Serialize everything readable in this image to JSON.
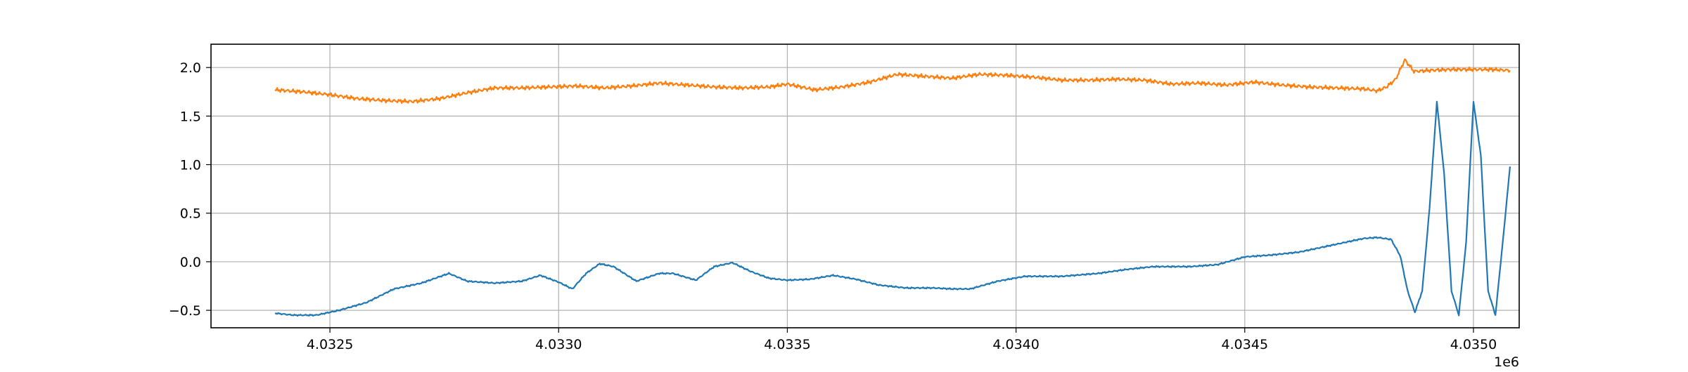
{
  "chart_data": {
    "type": "line",
    "title": "",
    "xlabel": "",
    "ylabel": "",
    "x_offset_label": "1e6",
    "x_scale": 1000000,
    "xlim": [
      4032240,
      4035100
    ],
    "ylim": [
      -0.68,
      2.24
    ],
    "x_ticks": [
      4032500,
      4033000,
      4033500,
      4034000,
      4034500,
      4035000
    ],
    "x_tick_labels": [
      "4.0325",
      "4.0330",
      "4.0335",
      "4.0340",
      "4.0345",
      "4.0350"
    ],
    "y_ticks": [
      -0.5,
      0.0,
      0.5,
      1.0,
      1.5,
      2.0
    ],
    "y_tick_labels": [
      "−0.5",
      "0.0",
      "0.5",
      "1.0",
      "1.5",
      "2.0"
    ],
    "grid": true,
    "legend": "none",
    "series": [
      {
        "color": "#1f77b4",
        "x": [
          4032380,
          4032420,
          4032470,
          4032520,
          4032580,
          4032640,
          4032700,
          4032730,
          4032760,
          4032800,
          4032860,
          4032920,
          4032960,
          4033000,
          4033030,
          4033060,
          4033090,
          4033120,
          4033170,
          4033220,
          4033250,
          4033300,
          4033340,
          4033380,
          4033420,
          4033460,
          4033500,
          4033550,
          4033600,
          4033650,
          4033700,
          4033760,
          4033820,
          4033860,
          4033900,
          4033960,
          4034020,
          4034100,
          4034180,
          4034240,
          4034300,
          4034380,
          4034440,
          4034500,
          4034560,
          4034620,
          4034680,
          4034720,
          4034760,
          4034790,
          4034820,
          4034840,
          4034856,
          4034872,
          4034888,
          4034904,
          4034920,
          4034936,
          4034952,
          4034968,
          4034984,
          4035000,
          4035016,
          4035032,
          4035048,
          4035064,
          4035080
        ],
        "y": [
          -0.53,
          -0.55,
          -0.55,
          -0.5,
          -0.42,
          -0.28,
          -0.22,
          -0.17,
          -0.12,
          -0.2,
          -0.22,
          -0.2,
          -0.14,
          -0.21,
          -0.28,
          -0.12,
          -0.02,
          -0.05,
          -0.2,
          -0.12,
          -0.12,
          -0.19,
          -0.05,
          -0.01,
          -0.1,
          -0.17,
          -0.19,
          -0.18,
          -0.14,
          -0.18,
          -0.24,
          -0.27,
          -0.27,
          -0.28,
          -0.28,
          -0.2,
          -0.15,
          -0.15,
          -0.12,
          -0.08,
          -0.05,
          -0.05,
          -0.03,
          0.05,
          0.07,
          0.1,
          0.16,
          0.2,
          0.24,
          0.25,
          0.23,
          0.06,
          -0.3,
          -0.52,
          -0.3,
          0.55,
          1.65,
          0.9,
          -0.3,
          -0.55,
          0.2,
          1.65,
          1.1,
          -0.3,
          -0.55,
          0.2,
          0.98
        ]
      },
      {
        "color": "#ff7f0e",
        "x": [
          4032380,
          4032440,
          4032500,
          4032560,
          4032620,
          4032680,
          4032740,
          4032800,
          4032860,
          4032920,
          4032980,
          4033040,
          4033100,
          4033160,
          4033220,
          4033280,
          4033340,
          4033400,
          4033460,
          4033500,
          4033560,
          4033620,
          4033680,
          4033740,
          4033800,
          4033860,
          4033920,
          4033980,
          4034040,
          4034100,
          4034160,
          4034220,
          4034280,
          4034340,
          4034400,
          4034460,
          4034520,
          4034580,
          4034640,
          4034700,
          4034760,
          4034790,
          4034810,
          4034830,
          4034850,
          4034870,
          4034900,
          4034950,
          4035000,
          4035040,
          4035080
        ],
        "y": [
          1.77,
          1.75,
          1.72,
          1.68,
          1.66,
          1.65,
          1.68,
          1.74,
          1.79,
          1.79,
          1.8,
          1.81,
          1.79,
          1.81,
          1.84,
          1.82,
          1.8,
          1.79,
          1.8,
          1.83,
          1.77,
          1.8,
          1.85,
          1.93,
          1.91,
          1.89,
          1.93,
          1.92,
          1.9,
          1.87,
          1.87,
          1.88,
          1.87,
          1.83,
          1.84,
          1.82,
          1.85,
          1.82,
          1.8,
          1.79,
          1.78,
          1.76,
          1.8,
          1.88,
          2.08,
          1.96,
          1.97,
          1.98,
          1.98,
          1.98,
          1.97
        ]
      }
    ]
  }
}
